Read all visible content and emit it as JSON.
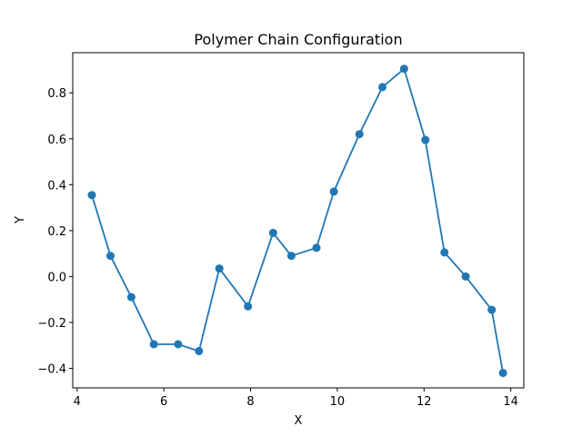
{
  "chart_data": {
    "type": "line",
    "title": "Polymer Chain Configuration",
    "xlabel": "X",
    "ylabel": "Y",
    "xlim": [
      3.9,
      14.3
    ],
    "ylim": [
      -0.485,
      0.975
    ],
    "xticks": [
      4,
      6,
      8,
      10,
      12,
      14
    ],
    "yticks": [
      -0.4,
      -0.2,
      0.0,
      0.2,
      0.4,
      0.6,
      0.8
    ],
    "xtick_labels": [
      "4",
      "6",
      "8",
      "10",
      "12",
      "14"
    ],
    "ytick_labels": [
      "−0.4",
      "−0.2",
      "0.0",
      "0.2",
      "0.4",
      "0.6",
      "0.8"
    ],
    "grid": false,
    "marker": "circle",
    "color": "#1f77b4",
    "series": [
      {
        "x": [
          4.34,
          4.77,
          5.25,
          5.77,
          6.33,
          6.81,
          7.28,
          7.94,
          8.52,
          8.94,
          9.52,
          9.92,
          10.51,
          11.04,
          11.54,
          12.03,
          12.47,
          12.96,
          13.56,
          13.82
        ],
        "y": [
          0.355,
          0.09,
          -0.09,
          -0.295,
          -0.295,
          -0.325,
          0.035,
          -0.13,
          0.19,
          0.09,
          0.125,
          0.37,
          0.62,
          0.825,
          0.905,
          0.595,
          0.105,
          0.0,
          -0.145,
          -0.42
        ]
      }
    ]
  }
}
